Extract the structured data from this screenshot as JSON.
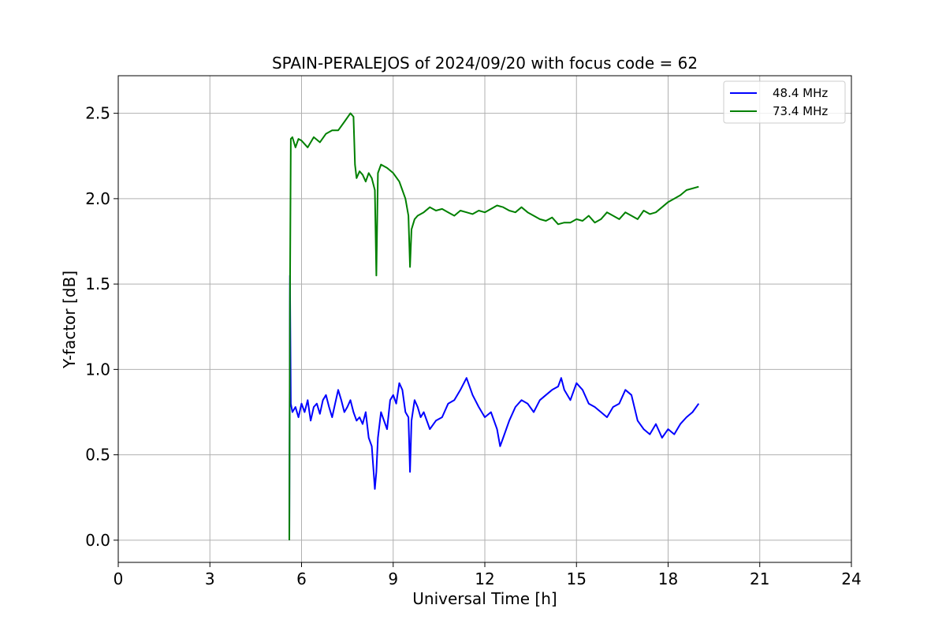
{
  "chart_data": {
    "type": "line",
    "title": "SPAIN-PERALEJOS of 2024/09/20 with focus code = 62",
    "xlabel": "Universal Time [h]",
    "ylabel": "Y-factor [dB]",
    "xlim": [
      0,
      24
    ],
    "ylim": [
      -0.13,
      2.72
    ],
    "xticks": [
      0,
      3,
      6,
      9,
      12,
      15,
      18,
      21,
      24
    ],
    "yticks": [
      0.0,
      0.5,
      1.0,
      1.5,
      2.0,
      2.5
    ],
    "ytick_labels": [
      "0.0",
      "0.5",
      "1.0",
      "1.5",
      "2.0",
      "2.5"
    ],
    "grid": true,
    "legend_position": "top-right",
    "series": [
      {
        "name": "48.4 MHz",
        "color": "#0000ff",
        "x": [
          5.6,
          5.62,
          5.65,
          5.7,
          5.8,
          5.9,
          6.0,
          6.1,
          6.2,
          6.3,
          6.4,
          6.5,
          6.6,
          6.7,
          6.8,
          6.9,
          7.0,
          7.1,
          7.2,
          7.3,
          7.4,
          7.5,
          7.6,
          7.7,
          7.8,
          7.9,
          8.0,
          8.1,
          8.2,
          8.3,
          8.4,
          8.45,
          8.5,
          8.6,
          8.7,
          8.8,
          8.9,
          9.0,
          9.1,
          9.2,
          9.3,
          9.4,
          9.5,
          9.55,
          9.6,
          9.7,
          9.8,
          9.9,
          10.0,
          10.2,
          10.4,
          10.6,
          10.8,
          11.0,
          11.2,
          11.4,
          11.6,
          11.8,
          12.0,
          12.2,
          12.4,
          12.5,
          12.6,
          12.8,
          13.0,
          13.2,
          13.4,
          13.6,
          13.8,
          14.0,
          14.2,
          14.4,
          14.5,
          14.6,
          14.8,
          15.0,
          15.2,
          15.4,
          15.6,
          15.8,
          16.0,
          16.2,
          16.4,
          16.6,
          16.8,
          17.0,
          17.2,
          17.4,
          17.6,
          17.8,
          18.0,
          18.2,
          18.4,
          18.6,
          18.8,
          19.0
        ],
        "y": [
          0.0,
          1.55,
          0.8,
          0.75,
          0.78,
          0.72,
          0.8,
          0.75,
          0.82,
          0.7,
          0.78,
          0.8,
          0.74,
          0.82,
          0.85,
          0.78,
          0.72,
          0.8,
          0.88,
          0.82,
          0.75,
          0.78,
          0.82,
          0.75,
          0.7,
          0.72,
          0.68,
          0.75,
          0.6,
          0.55,
          0.3,
          0.4,
          0.6,
          0.75,
          0.7,
          0.65,
          0.82,
          0.85,
          0.8,
          0.92,
          0.88,
          0.75,
          0.72,
          0.4,
          0.7,
          0.82,
          0.78,
          0.72,
          0.75,
          0.65,
          0.7,
          0.72,
          0.8,
          0.82,
          0.88,
          0.95,
          0.85,
          0.78,
          0.72,
          0.75,
          0.65,
          0.55,
          0.6,
          0.7,
          0.78,
          0.82,
          0.8,
          0.75,
          0.82,
          0.85,
          0.88,
          0.9,
          0.95,
          0.88,
          0.82,
          0.92,
          0.88,
          0.8,
          0.78,
          0.75,
          0.72,
          0.78,
          0.8,
          0.88,
          0.85,
          0.7,
          0.65,
          0.62,
          0.68,
          0.6,
          0.65,
          0.62,
          0.68,
          0.72,
          0.75,
          0.8
        ]
      },
      {
        "name": "73.4 MHz",
        "color": "#008000",
        "x": [
          5.6,
          5.62,
          5.65,
          5.7,
          5.8,
          5.9,
          6.0,
          6.2,
          6.4,
          6.6,
          6.8,
          7.0,
          7.2,
          7.4,
          7.6,
          7.7,
          7.75,
          7.8,
          7.9,
          8.0,
          8.1,
          8.2,
          8.3,
          8.4,
          8.45,
          8.5,
          8.6,
          8.8,
          9.0,
          9.2,
          9.3,
          9.4,
          9.5,
          9.55,
          9.6,
          9.7,
          9.8,
          10.0,
          10.2,
          10.4,
          10.6,
          10.8,
          11.0,
          11.2,
          11.4,
          11.6,
          11.8,
          12.0,
          12.2,
          12.4,
          12.6,
          12.8,
          13.0,
          13.2,
          13.4,
          13.6,
          13.8,
          14.0,
          14.2,
          14.4,
          14.6,
          14.8,
          15.0,
          15.2,
          15.4,
          15.6,
          15.8,
          16.0,
          16.2,
          16.4,
          16.6,
          16.8,
          17.0,
          17.2,
          17.4,
          17.6,
          17.8,
          18.0,
          18.2,
          18.4,
          18.6,
          18.8,
          19.0
        ],
        "y": [
          0.0,
          1.4,
          2.35,
          2.36,
          2.3,
          2.35,
          2.34,
          2.3,
          2.36,
          2.33,
          2.38,
          2.4,
          2.4,
          2.45,
          2.5,
          2.48,
          2.2,
          2.12,
          2.16,
          2.14,
          2.1,
          2.15,
          2.12,
          2.05,
          1.55,
          2.15,
          2.2,
          2.18,
          2.15,
          2.1,
          2.05,
          2.0,
          1.9,
          1.6,
          1.82,
          1.88,
          1.9,
          1.92,
          1.95,
          1.93,
          1.94,
          1.92,
          1.9,
          1.93,
          1.92,
          1.91,
          1.93,
          1.92,
          1.94,
          1.96,
          1.95,
          1.93,
          1.92,
          1.95,
          1.92,
          1.9,
          1.88,
          1.87,
          1.89,
          1.85,
          1.86,
          1.86,
          1.88,
          1.87,
          1.9,
          1.86,
          1.88,
          1.92,
          1.9,
          1.88,
          1.92,
          1.9,
          1.88,
          1.93,
          1.91,
          1.92,
          1.95,
          1.98,
          2.0,
          2.02,
          2.05,
          2.06,
          2.07
        ]
      }
    ]
  }
}
